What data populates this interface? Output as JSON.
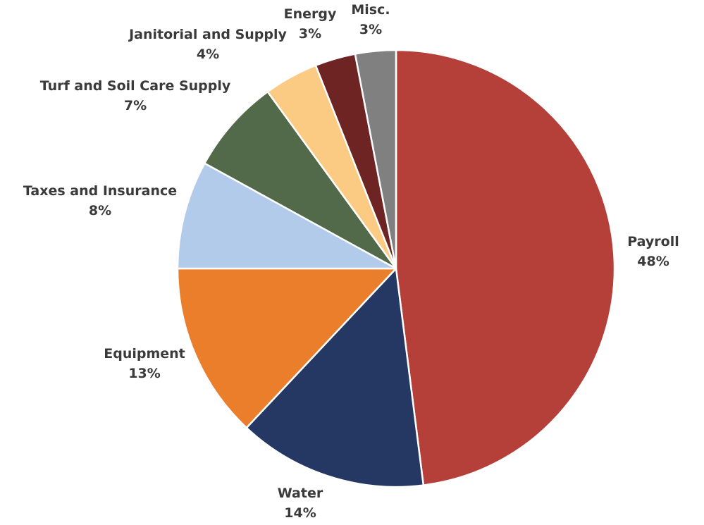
{
  "chart_data": {
    "type": "pie",
    "title": "",
    "start_angle": "12 o'clock",
    "direction": "clockwise",
    "slices": [
      {
        "label": "Payroll",
        "value": 48,
        "value_label": "48%",
        "color": "#B5403A"
      },
      {
        "label": "Water",
        "value": 14,
        "value_label": "14%",
        "color": "#253864"
      },
      {
        "label": "Equipment",
        "value": 13,
        "value_label": "13%",
        "color": "#EA7E2B"
      },
      {
        "label": "Taxes and Insurance",
        "value": 8,
        "value_label": "8%",
        "color": "#B2CBEA"
      },
      {
        "label": "Turf and Soil Care Supply",
        "value": 7,
        "value_label": "7%",
        "color": "#52694A"
      },
      {
        "label": "Janitorial and Supply",
        "value": 4,
        "value_label": "4%",
        "color": "#FBCB84"
      },
      {
        "label": "Energy",
        "value": 3,
        "value_label": "3%",
        "color": "#6E2422"
      },
      {
        "label": "Misc.",
        "value": 3,
        "value_label": "3%",
        "color": "#808080"
      }
    ]
  }
}
